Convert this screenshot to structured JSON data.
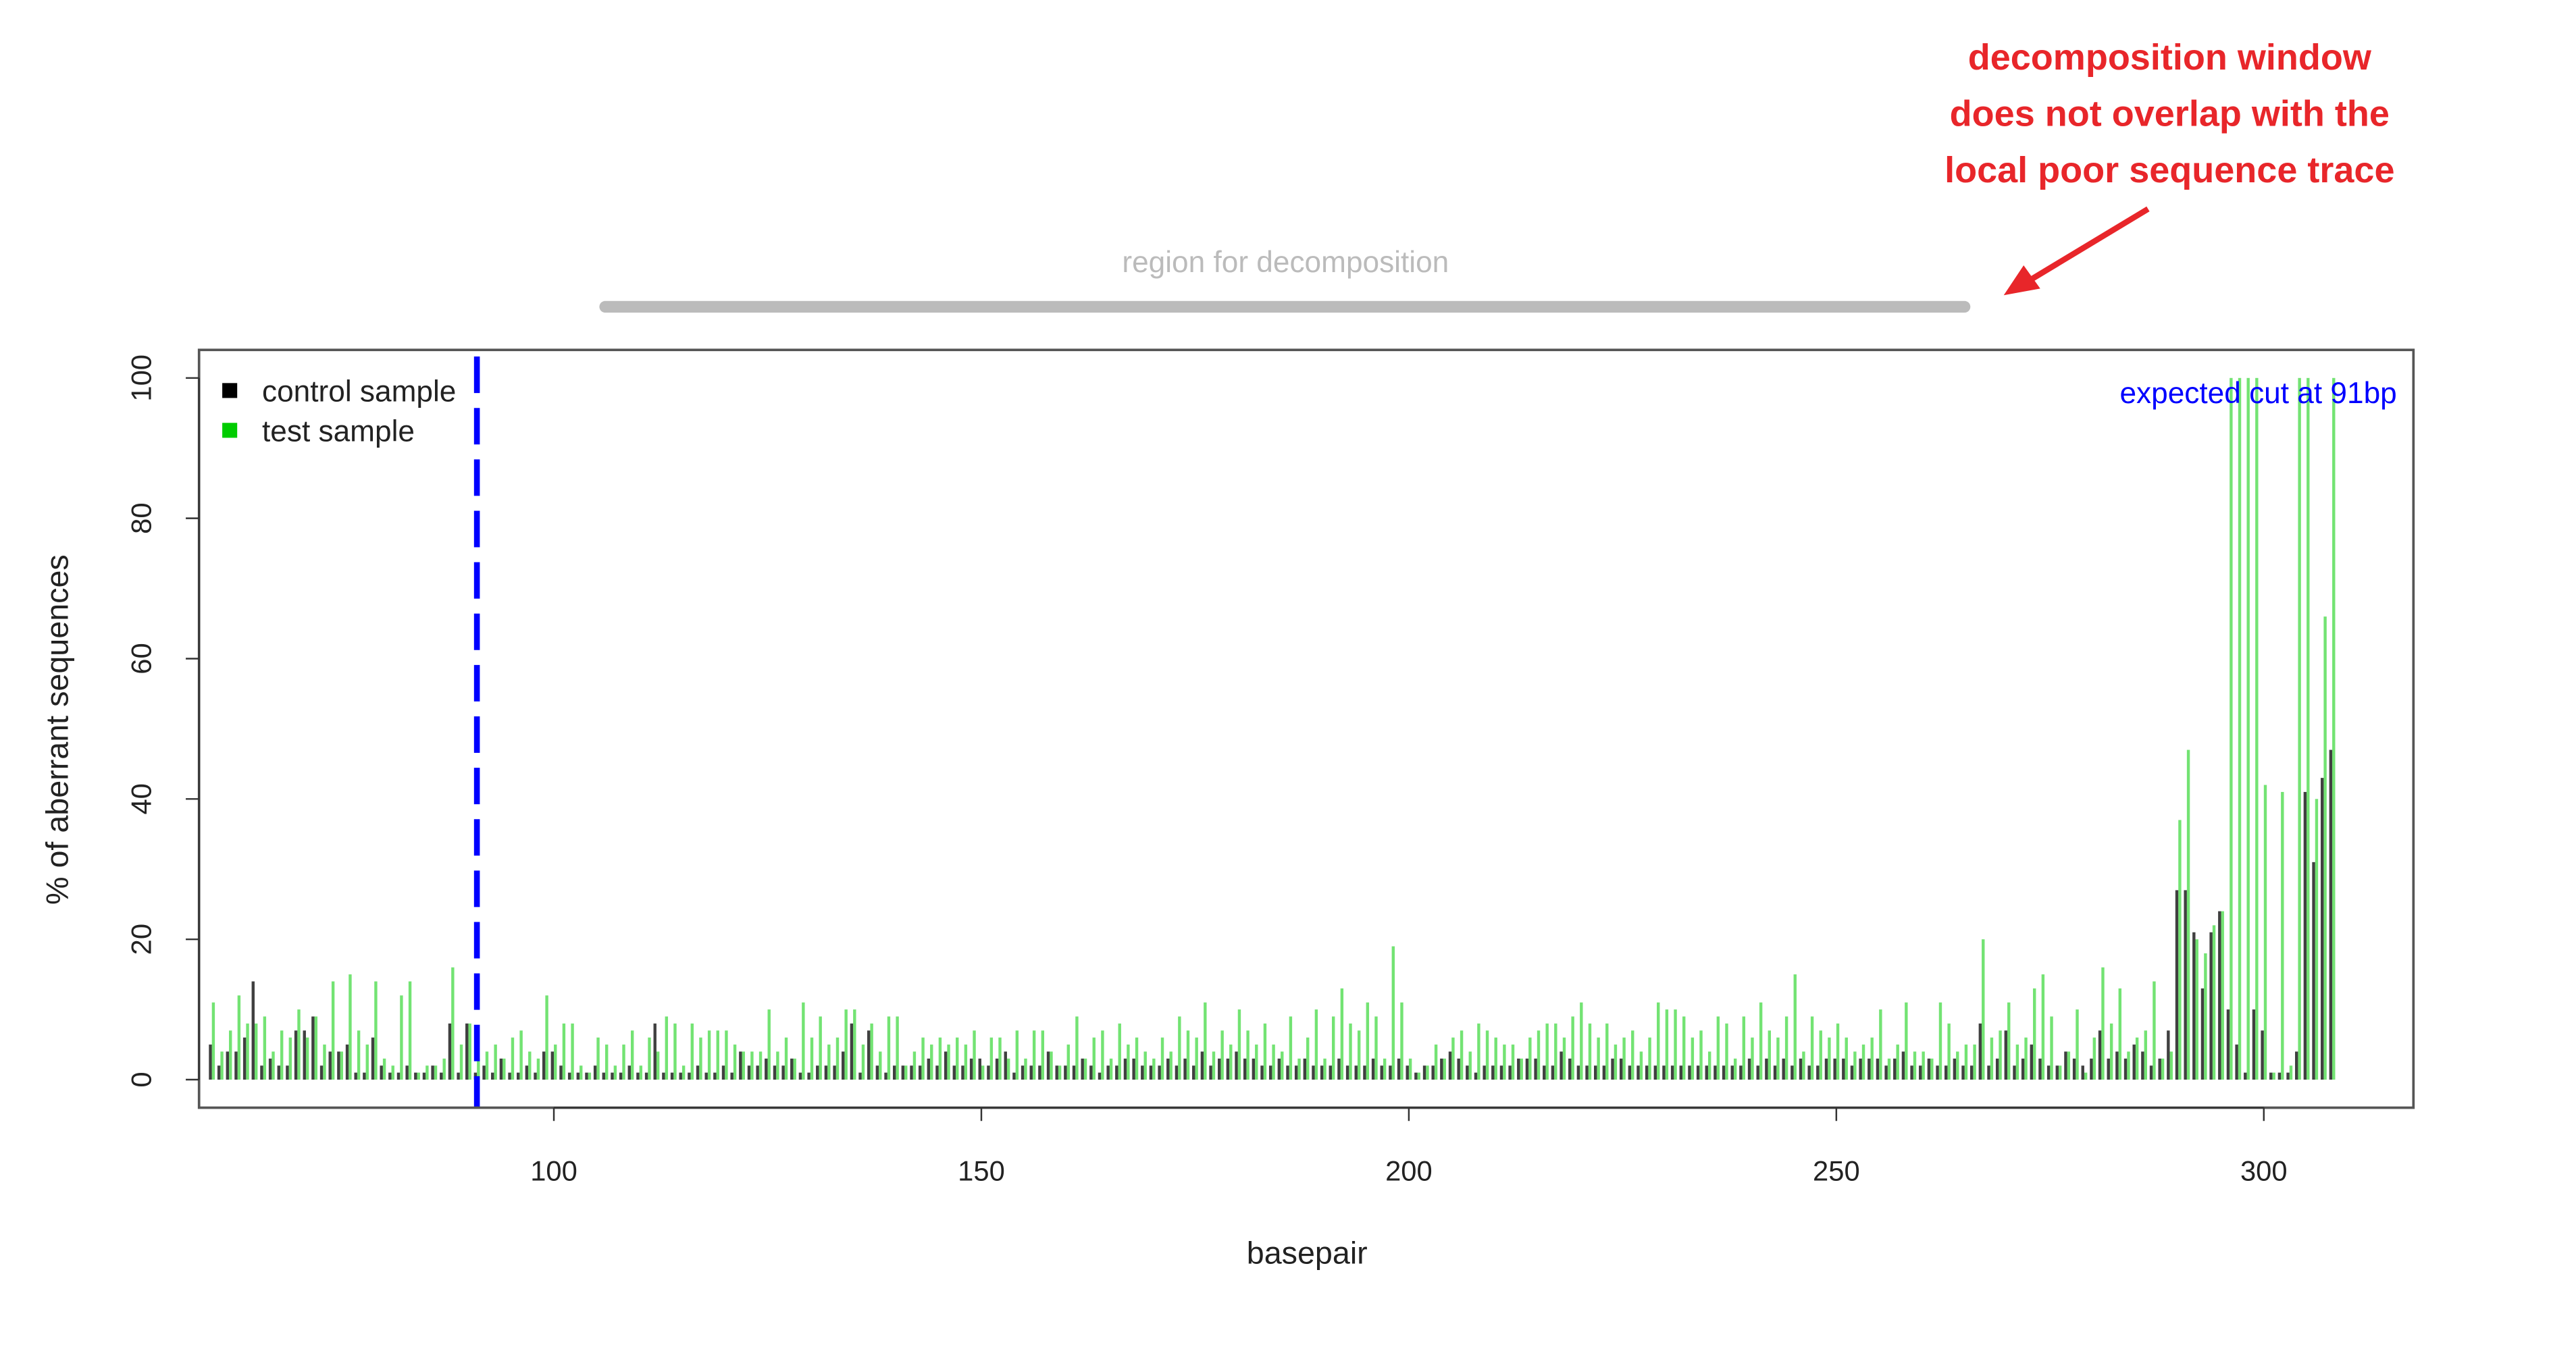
{
  "chart_data": {
    "type": "bar",
    "x_label": "basepair",
    "y_label": "% of aberrant sequences",
    "xlim": [
      58.5,
      317.5
    ],
    "ylim": [
      -4,
      104
    ],
    "xticks": [
      100,
      150,
      200,
      250,
      300
    ],
    "yticks": [
      0,
      20,
      40,
      60,
      80,
      100
    ],
    "legend": "topleft",
    "cut_site": 91,
    "cut_label": "expected cut at 91bp",
    "cut_color": "#0000ff",
    "decomposition_window": [
      106,
      265
    ],
    "decomposition_label": "region for decomposition",
    "annotation": [
      "decomposition window",
      "does not overlap with the",
      "local poor sequence trace"
    ],
    "x": [
      60,
      61,
      62,
      63,
      64,
      65,
      66,
      67,
      68,
      69,
      70,
      71,
      72,
      73,
      74,
      75,
      76,
      77,
      78,
      79,
      80,
      81,
      82,
      83,
      84,
      85,
      86,
      87,
      88,
      89,
      90,
      91,
      92,
      93,
      94,
      95,
      96,
      97,
      98,
      99,
      100,
      101,
      102,
      103,
      104,
      105,
      106,
      107,
      108,
      109,
      110,
      111,
      112,
      113,
      114,
      115,
      116,
      117,
      118,
      119,
      120,
      121,
      122,
      123,
      124,
      125,
      126,
      127,
      128,
      129,
      130,
      131,
      132,
      133,
      134,
      135,
      136,
      137,
      138,
      139,
      140,
      141,
      142,
      143,
      144,
      145,
      146,
      147,
      148,
      149,
      150,
      151,
      152,
      153,
      154,
      155,
      156,
      157,
      158,
      159,
      160,
      161,
      162,
      163,
      164,
      165,
      166,
      167,
      168,
      169,
      170,
      171,
      172,
      173,
      174,
      175,
      176,
      177,
      178,
      179,
      180,
      181,
      182,
      183,
      184,
      185,
      186,
      187,
      188,
      189,
      190,
      191,
      192,
      193,
      194,
      195,
      196,
      197,
      198,
      199,
      200,
      201,
      202,
      203,
      204,
      205,
      206,
      207,
      208,
      209,
      210,
      211,
      212,
      213,
      214,
      215,
      216,
      217,
      218,
      219,
      220,
      221,
      222,
      223,
      224,
      225,
      226,
      227,
      228,
      229,
      230,
      231,
      232,
      233,
      234,
      235,
      236,
      237,
      238,
      239,
      240,
      241,
      242,
      243,
      244,
      245,
      246,
      247,
      248,
      249,
      250,
      251,
      252,
      253,
      254,
      255,
      256,
      257,
      258,
      259,
      260,
      261,
      262,
      263,
      264,
      265,
      266,
      267,
      268,
      269,
      270,
      271,
      272,
      273,
      274,
      275,
      276,
      277,
      278,
      279,
      280,
      281,
      282,
      283,
      284,
      285,
      286,
      287,
      288,
      289,
      290,
      291,
      292,
      293,
      294,
      295,
      296,
      297,
      298,
      299,
      300,
      301,
      302,
      303,
      304,
      305,
      306,
      307,
      308
    ],
    "series": [
      {
        "name": "control sample",
        "color": "#000000",
        "values": [
          5,
          2,
          4,
          4,
          6,
          14,
          2,
          3,
          2,
          2,
          7,
          7,
          9,
          2,
          4,
          4,
          5,
          1,
          1,
          6,
          2,
          1,
          1,
          2,
          1,
          1,
          2,
          1,
          8,
          1,
          8,
          1,
          2,
          1,
          3,
          1,
          1,
          2,
          1,
          4,
          4,
          2,
          1,
          1,
          1,
          2,
          1,
          1,
          1,
          2,
          1,
          1,
          8,
          1,
          1,
          1,
          1,
          2,
          1,
          1,
          2,
          1,
          4,
          2,
          2,
          3,
          2,
          2,
          3,
          1,
          1,
          2,
          2,
          2,
          4,
          8,
          1,
          7,
          2,
          1,
          2,
          2,
          2,
          2,
          3,
          2,
          4,
          2,
          2,
          3,
          3,
          2,
          3,
          4,
          1,
          2,
          2,
          2,
          4,
          2,
          2,
          2,
          3,
          2,
          1,
          2,
          2,
          3,
          3,
          2,
          2,
          2,
          3,
          2,
          3,
          2,
          4,
          2,
          3,
          3,
          4,
          3,
          3,
          2,
          2,
          3,
          2,
          2,
          3,
          2,
          2,
          2,
          3,
          2,
          2,
          2,
          3,
          2,
          2,
          3,
          2,
          1,
          2,
          2,
          3,
          4,
          3,
          2,
          1,
          2,
          2,
          2,
          2,
          3,
          3,
          3,
          2,
          2,
          4,
          3,
          2,
          2,
          2,
          2,
          3,
          3,
          2,
          2,
          2,
          2,
          2,
          2,
          2,
          2,
          2,
          2,
          2,
          2,
          2,
          2,
          3,
          2,
          3,
          2,
          3,
          2,
          3,
          2,
          2,
          3,
          3,
          3,
          2,
          3,
          3,
          3,
          2,
          3,
          4,
          2,
          2,
          3,
          2,
          2,
          3,
          2,
          2,
          8,
          2,
          3,
          7,
          2,
          3,
          5,
          3,
          2,
          2,
          4,
          3,
          2,
          3,
          7,
          3,
          4,
          3,
          5,
          4,
          2,
          3,
          7,
          27,
          27,
          21,
          13,
          21,
          24,
          10,
          5,
          1,
          10,
          7,
          1,
          1,
          1,
          4,
          41,
          31,
          43,
          47
        ]
      },
      {
        "name": "test sample",
        "color": "#00cc00",
        "values": [
          11,
          4,
          7,
          12,
          8,
          8,
          9,
          4,
          7,
          6,
          10,
          6,
          9,
          5,
          14,
          4,
          15,
          7,
          5,
          14,
          3,
          2,
          12,
          14,
          1,
          2,
          2,
          3,
          16,
          5,
          8,
          3,
          4,
          5,
          3,
          6,
          7,
          4,
          3,
          12,
          5,
          8,
          8,
          2,
          1,
          6,
          5,
          2,
          5,
          7,
          2,
          6,
          4,
          9,
          8,
          2,
          8,
          6,
          7,
          7,
          7,
          5,
          4,
          4,
          4,
          10,
          4,
          6,
          3,
          11,
          6,
          9,
          5,
          6,
          10,
          10,
          5,
          8,
          4,
          9,
          9,
          2,
          4,
          6,
          5,
          6,
          5,
          6,
          5,
          7,
          2,
          6,
          6,
          3,
          7,
          3,
          7,
          7,
          4,
          2,
          5,
          9,
          3,
          6,
          7,
          3,
          8,
          5,
          6,
          4,
          3,
          6,
          4,
          9,
          7,
          6,
          11,
          4,
          7,
          5,
          10,
          7,
          5,
          8,
          5,
          4,
          9,
          3,
          6,
          10,
          3,
          9,
          13,
          8,
          7,
          11,
          9,
          3,
          19,
          11,
          3,
          1,
          2,
          5,
          3,
          6,
          7,
          4,
          8,
          7,
          6,
          5,
          5,
          3,
          6,
          7,
          8,
          8,
          6,
          9,
          11,
          8,
          6,
          8,
          5,
          6,
          7,
          4,
          6,
          11,
          10,
          10,
          9,
          6,
          7,
          4,
          9,
          8,
          3,
          9,
          6,
          11,
          7,
          6,
          9,
          15,
          4,
          9,
          7,
          6,
          8,
          6,
          4,
          5,
          6,
          10,
          3,
          5,
          11,
          4,
          4,
          3,
          11,
          8,
          4,
          5,
          5,
          20,
          6,
          7,
          11,
          5,
          6,
          13,
          15,
          9,
          2,
          4,
          10,
          1,
          6,
          16,
          8,
          13,
          4,
          6,
          7,
          14,
          3,
          4,
          37,
          47,
          20,
          18,
          22,
          24,
          100,
          100,
          100,
          100,
          42,
          1,
          41,
          2,
          100,
          100,
          40,
          66,
          100
        ]
      }
    ]
  }
}
